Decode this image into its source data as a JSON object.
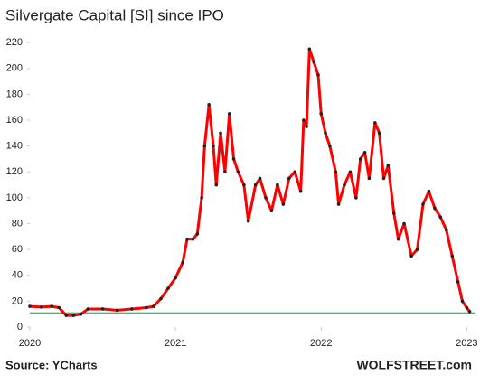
{
  "chart_data": {
    "type": "line",
    "title": "Silvergate Capital [SI] since IPO",
    "x": [
      2020.0,
      2020.08,
      2020.15,
      2020.2,
      2020.25,
      2020.3,
      2020.35,
      2020.4,
      2020.5,
      2020.6,
      2020.7,
      2020.8,
      2020.85,
      2020.9,
      2020.95,
      2021.0,
      2021.05,
      2021.08,
      2021.12,
      2021.15,
      2021.18,
      2021.2,
      2021.23,
      2021.26,
      2021.28,
      2021.31,
      2021.34,
      2021.37,
      2021.4,
      2021.43,
      2021.47,
      2021.5,
      2021.55,
      2021.58,
      2021.62,
      2021.66,
      2021.7,
      2021.74,
      2021.78,
      2021.82,
      2021.86,
      2021.88,
      2021.9,
      2021.92,
      2021.95,
      2021.98,
      2022.0,
      2022.03,
      2022.06,
      2022.1,
      2022.12,
      2022.16,
      2022.2,
      2022.24,
      2022.27,
      2022.3,
      2022.33,
      2022.37,
      2022.4,
      2022.43,
      2022.46,
      2022.5,
      2022.53,
      2022.57,
      2022.62,
      2022.66,
      2022.7,
      2022.74,
      2022.78,
      2022.82,
      2022.86,
      2022.9,
      2022.94,
      2022.97,
      2023.0,
      2023.02
    ],
    "series": [
      {
        "name": "SI",
        "color": "#ff0000",
        "marker_color": "#222222",
        "values": [
          16,
          15.5,
          16,
          15,
          9,
          9,
          10,
          14,
          14,
          13,
          14,
          15,
          16,
          22,
          30,
          38,
          50,
          68,
          68,
          72,
          100,
          140,
          172,
          140,
          110,
          150,
          120,
          165,
          130,
          120,
          110,
          82,
          110,
          115,
          100,
          90,
          110,
          95,
          115,
          120,
          105,
          160,
          155,
          215,
          205,
          195,
          165,
          150,
          140,
          120,
          95,
          110,
          120,
          100,
          130,
          135,
          115,
          158,
          150,
          115,
          125,
          88,
          68,
          80,
          55,
          60,
          95,
          105,
          92,
          85,
          75,
          55,
          35,
          20,
          15,
          12
        ]
      }
    ],
    "reference_line": {
      "value": 11,
      "color": "#2e8b57"
    },
    "xlim": [
      2020,
      2023.06
    ],
    "xticks": [
      2020,
      2021,
      2022,
      2023
    ],
    "ylim": [
      0,
      225
    ],
    "yticks": [
      0,
      20,
      40,
      60,
      80,
      100,
      120,
      140,
      160,
      180,
      200,
      220
    ],
    "grid": false,
    "source": "Source: YCharts",
    "watermark": "WOLFSTREET.com"
  }
}
